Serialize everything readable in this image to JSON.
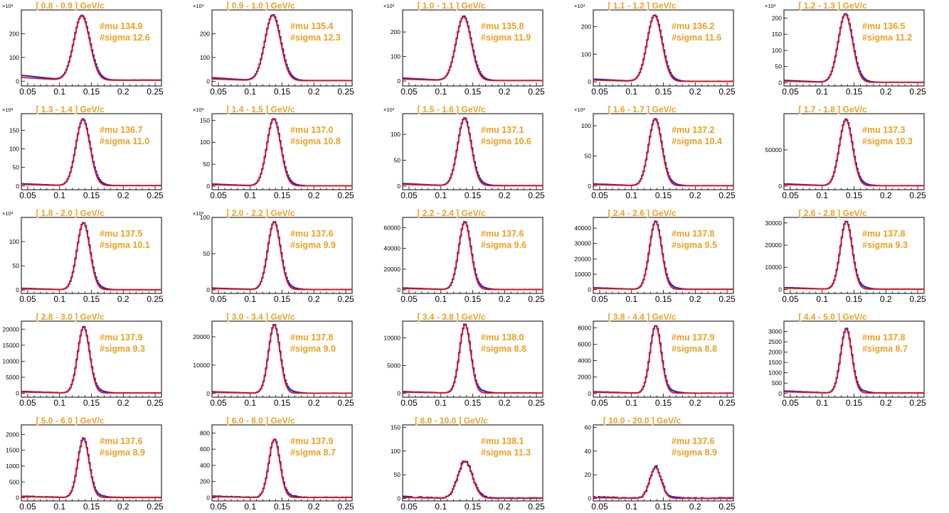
{
  "style": {
    "data_color": "#2020d0",
    "fit_color": "#ee1111",
    "text_color": "#f0a020"
  },
  "chart_data": [
    {
      "type": "line",
      "title": "[  0.8 - 0.9 ]  GeV/c",
      "mu_label": "#mu 134.9",
      "sigma_label": "#sigma 12.6",
      "mu": 0.1349,
      "sigma": 0.0126,
      "peak": 270,
      "bkg_left": 20,
      "noise": 0.03,
      "xlim": [
        0.04,
        0.26
      ],
      "ylim": [
        -20,
        300
      ],
      "yticks": [
        0,
        100,
        200
      ],
      "y_exponent": "×10³",
      "xticks": [
        "0.05",
        "0.1",
        "0.15",
        "0.2",
        "0.25"
      ]
    },
    {
      "type": "line",
      "title": "[  0.9 - 1.0 ]  GeV/c",
      "mu_label": "#mu 135.4",
      "sigma_label": "#sigma 12.3",
      "mu": 0.1354,
      "sigma": 0.0123,
      "peak": 275,
      "bkg_left": 12,
      "noise": 0.03,
      "xlim": [
        0.04,
        0.26
      ],
      "ylim": [
        -20,
        300
      ],
      "yticks": [
        0,
        100,
        200
      ],
      "y_exponent": "×10³",
      "xticks": [
        "0.05",
        "0.1",
        "0.15",
        "0.2",
        "0.25"
      ]
    },
    {
      "type": "line",
      "title": "[  1.0 - 1.1 ]  GeV/c",
      "mu_label": "#mu 135.8",
      "sigma_label": "#sigma 11.9",
      "mu": 0.1358,
      "sigma": 0.0119,
      "peak": 260,
      "bkg_left": 10,
      "noise": 0.03,
      "xlim": [
        0.04,
        0.26
      ],
      "ylim": [
        -20,
        290
      ],
      "yticks": [
        0,
        100,
        200
      ],
      "y_exponent": "×10³",
      "xticks": [
        "0.05",
        "0.1",
        "0.15",
        "0.2",
        "0.25"
      ]
    },
    {
      "type": "line",
      "title": "[  1.1 - 1.2 ]  GeV/c",
      "mu_label": "#mu 136.2",
      "sigma_label": "#sigma 11.6",
      "mu": 0.1362,
      "sigma": 0.0116,
      "peak": 238,
      "bkg_left": 8,
      "noise": 0.03,
      "xlim": [
        0.04,
        0.26
      ],
      "ylim": [
        -15,
        260
      ],
      "yticks": [
        0,
        100,
        200
      ],
      "y_exponent": "×10³",
      "xticks": [
        "0.05",
        "0.1",
        "0.15",
        "0.2",
        "0.25"
      ]
    },
    {
      "type": "line",
      "title": "[  1.2 - 1.3 ]  GeV/c",
      "mu_label": "#mu 136.5",
      "sigma_label": "#sigma 11.2",
      "mu": 0.1365,
      "sigma": 0.0112,
      "peak": 210,
      "bkg_left": 6,
      "noise": 0.03,
      "xlim": [
        0.04,
        0.26
      ],
      "ylim": [
        -10,
        225
      ],
      "yticks": [
        0,
        50,
        100,
        150,
        200
      ],
      "y_exponent": "×10³",
      "xticks": [
        "0.05",
        "0.1",
        "0.15",
        "0.2",
        "0.25"
      ]
    },
    {
      "type": "line",
      "title": "[  1.3 - 1.4 ]  GeV/c",
      "mu_label": "#mu 136.7",
      "sigma_label": "#sigma 11.0",
      "mu": 0.1367,
      "sigma": 0.011,
      "peak": 178,
      "bkg_left": 5,
      "noise": 0.03,
      "xlim": [
        0.04,
        0.26
      ],
      "ylim": [
        -10,
        195
      ],
      "yticks": [
        0,
        50,
        100,
        150
      ],
      "y_exponent": "×10³",
      "xticks": [
        "0.05",
        "0.1",
        "0.15",
        "0.2",
        "0.25"
      ]
    },
    {
      "type": "line",
      "title": "[  1.4 - 1.5 ]  GeV/c",
      "mu_label": "#mu 137.0",
      "sigma_label": "#sigma 10.8",
      "mu": 0.137,
      "sigma": 0.0108,
      "peak": 152,
      "bkg_left": 4,
      "noise": 0.03,
      "xlim": [
        0.04,
        0.26
      ],
      "ylim": [
        -8,
        165
      ],
      "yticks": [
        0,
        50,
        100,
        150
      ],
      "y_exponent": "×10³",
      "xticks": [
        "0.05",
        "0.1",
        "0.15",
        "0.2",
        "0.25"
      ]
    },
    {
      "type": "line",
      "title": "[  1.5 - 1.6 ]  GeV/c",
      "mu_label": "#mu 137.1",
      "sigma_label": "#sigma 10.6",
      "mu": 0.1371,
      "sigma": 0.0106,
      "peak": 130,
      "bkg_left": 4,
      "noise": 0.03,
      "xlim": [
        0.04,
        0.26
      ],
      "ylim": [
        -7,
        140
      ],
      "yticks": [
        0,
        50,
        100
      ],
      "y_exponent": "×10³",
      "xticks": [
        "0.05",
        "0.1",
        "0.15",
        "0.2",
        "0.25"
      ]
    },
    {
      "type": "line",
      "title": "[  1.6 - 1.7 ]  GeV/c",
      "mu_label": "#mu 137.2",
      "sigma_label": "#sigma 10.4",
      "mu": 0.1372,
      "sigma": 0.0104,
      "peak": 110,
      "bkg_left": 3,
      "noise": 0.03,
      "xlim": [
        0.04,
        0.26
      ],
      "ylim": [
        -6,
        120
      ],
      "yticks": [
        0,
        50,
        100
      ],
      "y_exponent": "×10³",
      "xticks": [
        "0.05",
        "0.1",
        "0.15",
        "0.2",
        "0.25"
      ]
    },
    {
      "type": "line",
      "title": "[  1.7 - 1.8 ]  GeV/c",
      "mu_label": "#mu 137.3",
      "sigma_label": "#sigma 10.3",
      "mu": 0.1373,
      "sigma": 0.0103,
      "peak": 91000,
      "bkg_left": 2500,
      "noise": 0.03,
      "xlim": [
        0.04,
        0.26
      ],
      "ylim": [
        -5000,
        100000
      ],
      "yticks": [
        0,
        50000
      ],
      "y_exponent": "",
      "xticks": [
        "0.05",
        "0.1",
        "0.15",
        "0.2",
        "0.25"
      ]
    },
    {
      "type": "line",
      "title": "[  1.8 - 2.0 ]  GeV/c",
      "mu_label": "#mu 137.5",
      "sigma_label": "#sigma 10.1",
      "mu": 0.1375,
      "sigma": 0.0101,
      "peak": 138,
      "bkg_left": 3,
      "noise": 0.03,
      "xlim": [
        0.04,
        0.26
      ],
      "ylim": [
        -7,
        150
      ],
      "yticks": [
        0,
        50,
        100
      ],
      "y_exponent": "×10³",
      "xticks": [
        "0.05",
        "0.1",
        "0.15",
        "0.2",
        "0.25"
      ]
    },
    {
      "type": "line",
      "title": "[  2.0 - 2.2 ]  GeV/c",
      "mu_label": "#mu 137.6",
      "sigma_label": "#sigma 9.9",
      "mu": 0.1376,
      "sigma": 0.0099,
      "peak": 93,
      "bkg_left": 2,
      "noise": 0.03,
      "xlim": [
        0.04,
        0.26
      ],
      "ylim": [
        -5,
        100
      ],
      "yticks": [
        0,
        50,
        100
      ],
      "y_exponent": "×10³",
      "xticks": [
        "0.05",
        "0.1",
        "0.15",
        "0.2",
        "0.25"
      ]
    },
    {
      "type": "line",
      "title": "[  2.2 - 2.4 ]  GeV/c",
      "mu_label": "#mu 137.6",
      "sigma_label": "#sigma 9.6",
      "mu": 0.1376,
      "sigma": 0.0096,
      "peak": 65000,
      "bkg_left": 1500,
      "noise": 0.03,
      "xlim": [
        0.04,
        0.26
      ],
      "ylim": [
        -3500,
        70000
      ],
      "yticks": [
        0,
        20000,
        40000,
        60000
      ],
      "y_exponent": "",
      "xticks": [
        "0.05",
        "0.1",
        "0.15",
        "0.2",
        "0.25"
      ]
    },
    {
      "type": "line",
      "title": "[  2.4 - 2.6 ]  GeV/c",
      "mu_label": "#mu 137.8",
      "sigma_label": "#sigma 9.5",
      "mu": 0.1378,
      "sigma": 0.0095,
      "peak": 44000,
      "bkg_left": 1000,
      "noise": 0.03,
      "xlim": [
        0.04,
        0.26
      ],
      "ylim": [
        -2500,
        47000
      ],
      "yticks": [
        0,
        10000,
        20000,
        30000,
        40000
      ],
      "y_exponent": "",
      "xticks": [
        "0.05",
        "0.1",
        "0.15",
        "0.2",
        "0.25"
      ]
    },
    {
      "type": "line",
      "title": "[  2.6 - 2.8 ]  GeV/c",
      "mu_label": "#mu 137.8",
      "sigma_label": "#sigma 9.3",
      "mu": 0.1378,
      "sigma": 0.0093,
      "peak": 30500,
      "bkg_left": 700,
      "noise": 0.03,
      "xlim": [
        0.04,
        0.26
      ],
      "ylim": [
        -1800,
        32500
      ],
      "yticks": [
        0,
        10000,
        20000,
        30000
      ],
      "y_exponent": "",
      "xticks": [
        "0.05",
        "0.1",
        "0.15",
        "0.2",
        "0.25"
      ]
    },
    {
      "type": "line",
      "title": "[  2.8 - 3.0 ]  GeV/c",
      "mu_label": "#mu 137.9",
      "sigma_label": "#sigma 9.3",
      "mu": 0.1379,
      "sigma": 0.0093,
      "peak": 20500,
      "bkg_left": 500,
      "noise": 0.04,
      "xlim": [
        0.04,
        0.26
      ],
      "ylim": [
        -1200,
        22500
      ],
      "yticks": [
        0,
        5000,
        10000,
        15000,
        20000
      ],
      "y_exponent": "",
      "xticks": [
        "0.05",
        "0.1",
        "0.15",
        "0.2",
        "0.25"
      ]
    },
    {
      "type": "line",
      "title": "[  3.0 - 3.4 ]  GeV/c",
      "mu_label": "#mu 137.8",
      "sigma_label": "#sigma 9.0",
      "mu": 0.1378,
      "sigma": 0.009,
      "peak": 24000,
      "bkg_left": 500,
      "noise": 0.04,
      "xlim": [
        0.04,
        0.26
      ],
      "ylim": [
        -1300,
        25500
      ],
      "yticks": [
        0,
        10000,
        20000
      ],
      "y_exponent": "",
      "xticks": [
        "0.05",
        "0.1",
        "0.15",
        "0.2",
        "0.25"
      ]
    },
    {
      "type": "line",
      "title": "[  3.4 - 3.8 ]  GeV/c",
      "mu_label": "#mu 138.0",
      "sigma_label": "#sigma 8.8",
      "mu": 0.138,
      "sigma": 0.0088,
      "peak": 12300,
      "bkg_left": 250,
      "noise": 0.05,
      "xlim": [
        0.04,
        0.26
      ],
      "ylim": [
        -700,
        13000
      ],
      "yticks": [
        0,
        5000,
        10000
      ],
      "y_exponent": "",
      "xticks": [
        "0.05",
        "0.1",
        "0.15",
        "0.2",
        "0.25"
      ]
    },
    {
      "type": "line",
      "title": "[  3.8 - 4.4 ]  GeV/c",
      "mu_label": "#mu 137.9",
      "sigma_label": "#sigma 8.8",
      "mu": 0.1379,
      "sigma": 0.0088,
      "peak": 8200,
      "bkg_left": 180,
      "noise": 0.06,
      "xlim": [
        0.04,
        0.26
      ],
      "ylim": [
        -450,
        8800
      ],
      "yticks": [
        0,
        2000,
        4000,
        6000,
        8000
      ],
      "y_exponent": "",
      "xticks": [
        "0.05",
        "0.1",
        "0.15",
        "0.2",
        "0.25"
      ]
    },
    {
      "type": "line",
      "title": "[  4.4 - 5.0 ]  GeV/c",
      "mu_label": "#mu 137.8",
      "sigma_label": "#sigma 8.7",
      "mu": 0.1378,
      "sigma": 0.0087,
      "peak": 3100,
      "bkg_left": 100,
      "noise": 0.07,
      "xlim": [
        0.04,
        0.26
      ],
      "ylim": [
        -180,
        3500
      ],
      "yticks": [
        0,
        500,
        1000,
        1500,
        2000,
        2500,
        3000
      ],
      "y_exponent": "",
      "xticks": [
        "0.05",
        "0.1",
        "0.15",
        "0.2",
        "0.25"
      ]
    },
    {
      "type": "line",
      "title": "[  5.0 - 6.0 ]  GeV/c",
      "mu_label": "#mu 137.6",
      "sigma_label": "#sigma 8.9",
      "mu": 0.1376,
      "sigma": 0.0089,
      "peak": 1850,
      "bkg_left": 40,
      "noise": 0.12,
      "xlim": [
        0.04,
        0.26
      ],
      "ylim": [
        -100,
        2300
      ],
      "yticks": [
        0,
        500,
        1000,
        1500,
        2000
      ],
      "y_exponent": "",
      "xticks": [
        "0.05",
        "0.1",
        "0.15",
        "0.2",
        "0.25"
      ]
    },
    {
      "type": "line",
      "title": "[  6.0 - 8.0 ]  GeV/c",
      "mu_label": "#mu 137.9",
      "sigma_label": "#sigma 8.7",
      "mu": 0.1379,
      "sigma": 0.0087,
      "peak": 720,
      "bkg_left": 15,
      "noise": 0.15,
      "xlim": [
        0.04,
        0.26
      ],
      "ylim": [
        -40,
        900
      ],
      "yticks": [
        0,
        200,
        400,
        600,
        800
      ],
      "y_exponent": "",
      "xticks": [
        "0.05",
        "0.1",
        "0.15",
        "0.2",
        "0.25"
      ]
    },
    {
      "type": "line",
      "title": "[  8.0 - 10.0 ]  GeV/c",
      "mu_label": "#mu 138.1",
      "sigma_label": "#sigma 11.3",
      "mu": 0.1381,
      "sigma": 0.0113,
      "peak": 78,
      "bkg_left": 3,
      "noise": 0.35,
      "xlim": [
        0.04,
        0.26
      ],
      "ylim": [
        -5,
        155
      ],
      "yticks": [
        0,
        50,
        100,
        150
      ],
      "y_exponent": "",
      "xticks": [
        "0.05",
        "0.1",
        "0.15",
        "0.2",
        "0.25"
      ]
    },
    {
      "type": "line",
      "title": "[  10.0 - 20.0 ]  GeV/c",
      "mu_label": "#mu 137.6",
      "sigma_label": "#sigma 8.9",
      "mu": 0.1376,
      "sigma": 0.0089,
      "peak": 26,
      "bkg_left": 1,
      "noise": 0.45,
      "xlim": [
        0.04,
        0.26
      ],
      "ylim": [
        -2,
        62
      ],
      "yticks": [
        0,
        20,
        40,
        60
      ],
      "y_exponent": "",
      "xticks": [
        "0.05",
        "0.1",
        "0.15",
        "0.2",
        "0.25"
      ]
    }
  ]
}
